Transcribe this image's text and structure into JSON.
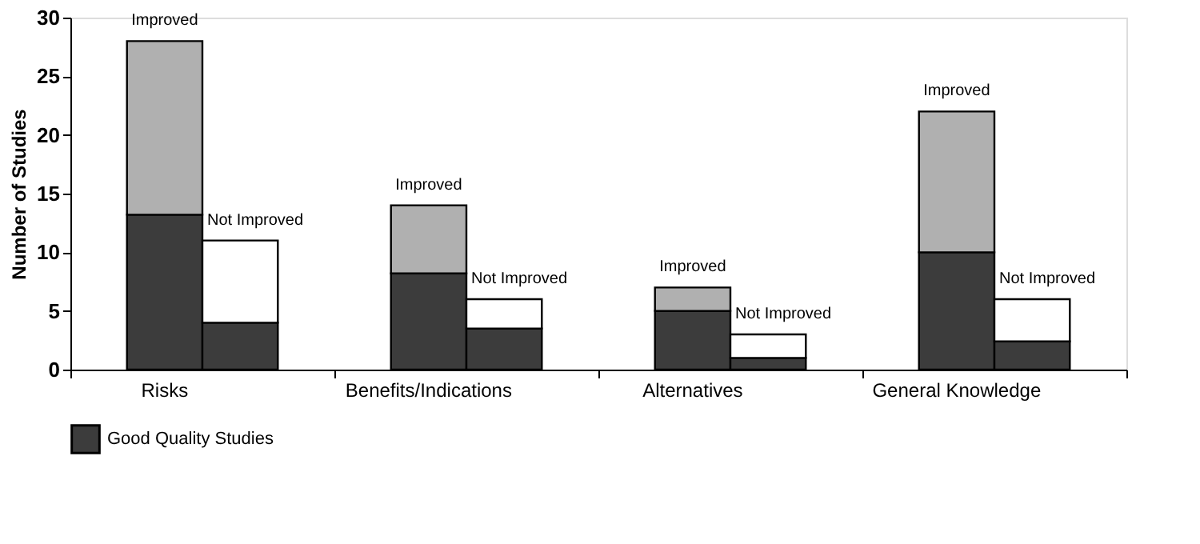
{
  "chart_data": {
    "type": "bar",
    "stacked": true,
    "ylabel": "Number of Studies",
    "categories": [
      "Risks",
      null,
      "Benefits/Indications",
      null,
      "Alternatives",
      null,
      "General Knowledge",
      null
    ],
    "series": [
      {
        "name": "Good Quality Studies",
        "color": "#3c3c3c",
        "values": [
          13.2,
          4,
          8.2,
          3.5,
          5,
          1,
          10,
          2.4
        ]
      },
      {
        "colors": [
          "#b0b0b0",
          "#ffffff",
          "#b0b0b0",
          "#ffffff",
          "#b0b0b0",
          "#ffffff",
          "#b0b0b0",
          "#ffffff"
        ],
        "values": [
          14.8,
          7,
          5.8,
          2.5,
          2,
          2,
          12,
          3.6
        ],
        "value_labels": [
          "Improved",
          "Not Improved",
          "Improved",
          "Not Improved",
          "Improved",
          "Not Improved",
          "Improved",
          "Not Improved"
        ]
      }
    ],
    "ylim": [
      0,
      30
    ],
    "yticks": [
      0,
      5,
      10,
      15,
      20,
      25,
      30
    ],
    "grid": false,
    "legend": "bottom"
  }
}
